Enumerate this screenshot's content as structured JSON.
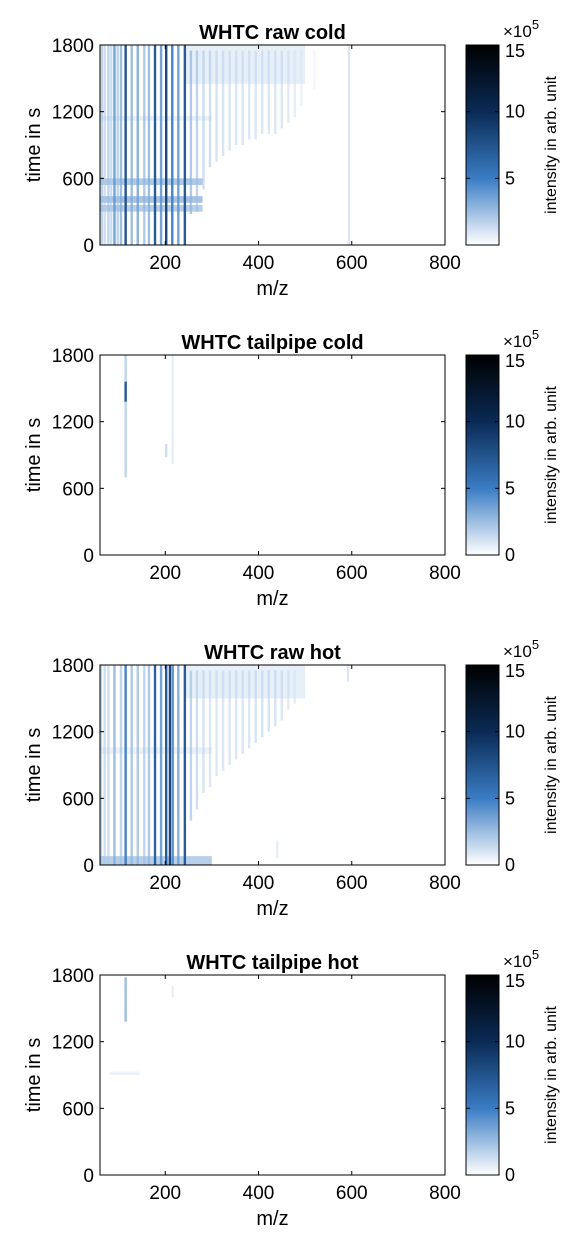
{
  "chart_data": [
    {
      "type": "heatmap",
      "title": "WHTC raw cold",
      "xlabel": "m/z",
      "ylabel": "time in s",
      "xlim": [
        60,
        800
      ],
      "ylim": [
        0,
        1800
      ],
      "xticks": [
        "200",
        "400",
        "600",
        "800"
      ],
      "yticks": [
        "0",
        "600",
        "1200",
        "1800"
      ],
      "colorbar": {
        "label": "intensity in arb. unit",
        "range": [
          0,
          15
        ],
        "multiplier": "×10",
        "exponent": "5",
        "ticks": [
          "5",
          "10",
          "15"
        ],
        "colormap": [
          "#ffffff",
          "#3a7cc4",
          "#0a2a55",
          "#000000"
        ]
      },
      "streaks": [
        {
          "mz": 58,
          "t0": 0,
          "t1": 1800,
          "i": 0.35
        },
        {
          "mz": 64,
          "t0": 0,
          "t1": 1800,
          "i": 0.3
        },
        {
          "mz": 70,
          "t0": 0,
          "t1": 1800,
          "i": 0.25
        },
        {
          "mz": 78,
          "t0": 0,
          "t1": 1800,
          "i": 0.3
        },
        {
          "mz": 84,
          "t0": 0,
          "t1": 1800,
          "i": 0.25
        },
        {
          "mz": 91,
          "t0": 0,
          "t1": 1800,
          "i": 0.5
        },
        {
          "mz": 98,
          "t0": 0,
          "t1": 1800,
          "i": 0.3
        },
        {
          "mz": 105,
          "t0": 0,
          "t1": 1800,
          "i": 0.4
        },
        {
          "mz": 115,
          "t0": 0,
          "t1": 1800,
          "i": 0.9
        },
        {
          "mz": 128,
          "t0": 0,
          "t1": 1800,
          "i": 0.4
        },
        {
          "mz": 141,
          "t0": 0,
          "t1": 1800,
          "i": 0.45
        },
        {
          "mz": 155,
          "t0": 0,
          "t1": 1800,
          "i": 0.35
        },
        {
          "mz": 165,
          "t0": 0,
          "t1": 1800,
          "i": 0.4
        },
        {
          "mz": 178,
          "t0": 0,
          "t1": 1800,
          "i": 0.85
        },
        {
          "mz": 191,
          "t0": 0,
          "t1": 1800,
          "i": 0.5
        },
        {
          "mz": 202,
          "t0": 0,
          "t1": 1800,
          "i": 1.0
        },
        {
          "mz": 215,
          "t0": 0,
          "t1": 1800,
          "i": 0.6
        },
        {
          "mz": 228,
          "t0": 0,
          "t1": 1800,
          "i": 0.5
        },
        {
          "mz": 242,
          "t0": 0,
          "t1": 1800,
          "i": 0.85
        },
        {
          "mz": 255,
          "t0": 280,
          "t1": 1750,
          "i": 0.35
        },
        {
          "mz": 268,
          "t0": 300,
          "t1": 1750,
          "i": 0.3
        },
        {
          "mz": 282,
          "t0": 500,
          "t1": 1750,
          "i": 0.25
        },
        {
          "mz": 296,
          "t0": 700,
          "t1": 1750,
          "i": 0.25
        },
        {
          "mz": 310,
          "t0": 750,
          "t1": 1750,
          "i": 0.22
        },
        {
          "mz": 324,
          "t0": 800,
          "t1": 1750,
          "i": 0.22
        },
        {
          "mz": 338,
          "t0": 850,
          "t1": 1750,
          "i": 0.2
        },
        {
          "mz": 352,
          "t0": 900,
          "t1": 1750,
          "i": 0.2
        },
        {
          "mz": 366,
          "t0": 900,
          "t1": 1750,
          "i": 0.2
        },
        {
          "mz": 380,
          "t0": 950,
          "t1": 1750,
          "i": 0.2
        },
        {
          "mz": 394,
          "t0": 950,
          "t1": 1750,
          "i": 0.2
        },
        {
          "mz": 408,
          "t0": 1000,
          "t1": 1750,
          "i": 0.2
        },
        {
          "mz": 422,
          "t0": 1000,
          "t1": 1750,
          "i": 0.2
        },
        {
          "mz": 436,
          "t0": 1000,
          "t1": 1750,
          "i": 0.2
        },
        {
          "mz": 450,
          "t0": 1050,
          "t1": 1750,
          "i": 0.2
        },
        {
          "mz": 464,
          "t0": 1100,
          "t1": 1750,
          "i": 0.18
        },
        {
          "mz": 478,
          "t0": 1150,
          "t1": 1750,
          "i": 0.15
        },
        {
          "mz": 492,
          "t0": 1250,
          "t1": 1750,
          "i": 0.12
        },
        {
          "mz": 520,
          "t0": 1400,
          "t1": 1750,
          "i": 0.08
        },
        {
          "mz": 594,
          "t0": 0,
          "t1": 1800,
          "i": 0.2
        }
      ],
      "bands": [
        {
          "mz0": 60,
          "mz1": 280,
          "t0": 300,
          "t1": 360,
          "i": 0.45
        },
        {
          "mz0": 60,
          "mz1": 280,
          "t0": 380,
          "t1": 440,
          "i": 0.55
        },
        {
          "mz0": 60,
          "mz1": 280,
          "t0": 540,
          "t1": 600,
          "i": 0.5
        },
        {
          "mz0": 60,
          "mz1": 300,
          "t0": 1120,
          "t1": 1160,
          "i": 0.15
        },
        {
          "mz0": 240,
          "mz1": 500,
          "t0": 1450,
          "t1": 1800,
          "i": 0.15
        }
      ]
    },
    {
      "type": "heatmap",
      "title": "WHTC tailpipe cold",
      "xlabel": "m/z",
      "ylabel": "time in s",
      "xlim": [
        60,
        800
      ],
      "ylim": [
        0,
        1800
      ],
      "xticks": [
        "200",
        "400",
        "600",
        "800"
      ],
      "yticks": [
        "0",
        "600",
        "1200",
        "1800"
      ],
      "colorbar": {
        "label": "intensity in arb. unit",
        "range": [
          0,
          15
        ],
        "multiplier": "×10",
        "exponent": "5",
        "ticks": [
          "0",
          "5",
          "10",
          "15"
        ],
        "colormap": [
          "#ffffff",
          "#3a7cc4",
          "#0a2a55",
          "#000000"
        ]
      },
      "streaks": [
        {
          "mz": 115,
          "t0": 700,
          "t1": 1800,
          "i": 0.3
        },
        {
          "mz": 115,
          "t0": 1380,
          "t1": 1560,
          "i": 0.85
        },
        {
          "mz": 202,
          "t0": 880,
          "t1": 1000,
          "i": 0.25
        },
        {
          "mz": 216,
          "t0": 820,
          "t1": 1800,
          "i": 0.15
        }
      ],
      "bands": []
    },
    {
      "type": "heatmap",
      "title": "WHTC raw hot",
      "xlabel": "m/z",
      "ylabel": "time in s",
      "xlim": [
        60,
        800
      ],
      "ylim": [
        0,
        1800
      ],
      "xticks": [
        "200",
        "400",
        "600",
        "800"
      ],
      "yticks": [
        "0",
        "600",
        "1200",
        "1800"
      ],
      "colorbar": {
        "label": "intensity in arb. unit",
        "range": [
          0,
          15
        ],
        "multiplier": "×10",
        "exponent": "5",
        "ticks": [
          "0",
          "5",
          "10",
          "15"
        ],
        "colormap": [
          "#ffffff",
          "#3a7cc4",
          "#0a2a55",
          "#000000"
        ]
      },
      "streaks": [
        {
          "mz": 62,
          "t0": 0,
          "t1": 1800,
          "i": 0.3
        },
        {
          "mz": 70,
          "t0": 0,
          "t1": 1800,
          "i": 0.25
        },
        {
          "mz": 78,
          "t0": 0,
          "t1": 1800,
          "i": 0.25
        },
        {
          "mz": 91,
          "t0": 0,
          "t1": 1800,
          "i": 0.4
        },
        {
          "mz": 105,
          "t0": 0,
          "t1": 1800,
          "i": 0.3
        },
        {
          "mz": 115,
          "t0": 0,
          "t1": 1800,
          "i": 0.6
        },
        {
          "mz": 128,
          "t0": 0,
          "t1": 1800,
          "i": 0.35
        },
        {
          "mz": 141,
          "t0": 0,
          "t1": 1800,
          "i": 0.35
        },
        {
          "mz": 155,
          "t0": 0,
          "t1": 1800,
          "i": 0.3
        },
        {
          "mz": 165,
          "t0": 0,
          "t1": 1800,
          "i": 0.35
        },
        {
          "mz": 178,
          "t0": 0,
          "t1": 1800,
          "i": 0.8
        },
        {
          "mz": 191,
          "t0": 0,
          "t1": 1800,
          "i": 0.5
        },
        {
          "mz": 202,
          "t0": 0,
          "t1": 1800,
          "i": 0.85
        },
        {
          "mz": 210,
          "t0": 0,
          "t1": 1800,
          "i": 1.0
        },
        {
          "mz": 216,
          "t0": 0,
          "t1": 1800,
          "i": 0.55
        },
        {
          "mz": 228,
          "t0": 0,
          "t1": 1800,
          "i": 0.45
        },
        {
          "mz": 242,
          "t0": 0,
          "t1": 1800,
          "i": 0.85
        },
        {
          "mz": 255,
          "t0": 400,
          "t1": 1750,
          "i": 0.3
        },
        {
          "mz": 268,
          "t0": 500,
          "t1": 1750,
          "i": 0.25
        },
        {
          "mz": 282,
          "t0": 650,
          "t1": 1750,
          "i": 0.22
        },
        {
          "mz": 296,
          "t0": 700,
          "t1": 1750,
          "i": 0.2
        },
        {
          "mz": 310,
          "t0": 800,
          "t1": 1750,
          "i": 0.2
        },
        {
          "mz": 324,
          "t0": 850,
          "t1": 1750,
          "i": 0.2
        },
        {
          "mz": 338,
          "t0": 900,
          "t1": 1750,
          "i": 0.2
        },
        {
          "mz": 352,
          "t0": 950,
          "t1": 1750,
          "i": 0.2
        },
        {
          "mz": 366,
          "t0": 1000,
          "t1": 1750,
          "i": 0.2
        },
        {
          "mz": 380,
          "t0": 1050,
          "t1": 1750,
          "i": 0.2
        },
        {
          "mz": 394,
          "t0": 1100,
          "t1": 1750,
          "i": 0.22
        },
        {
          "mz": 408,
          "t0": 1150,
          "t1": 1750,
          "i": 0.22
        },
        {
          "mz": 422,
          "t0": 1200,
          "t1": 1750,
          "i": 0.22
        },
        {
          "mz": 436,
          "t0": 1250,
          "t1": 1750,
          "i": 0.22
        },
        {
          "mz": 450,
          "t0": 1300,
          "t1": 1750,
          "i": 0.2
        },
        {
          "mz": 464,
          "t0": 1400,
          "t1": 1750,
          "i": 0.18
        },
        {
          "mz": 478,
          "t0": 1450,
          "t1": 1750,
          "i": 0.15
        },
        {
          "mz": 440,
          "t0": 60,
          "t1": 220,
          "i": 0.15
        },
        {
          "mz": 592,
          "t0": 1650,
          "t1": 1800,
          "i": 0.2
        }
      ],
      "bands": [
        {
          "mz0": 60,
          "mz1": 300,
          "t0": 0,
          "t1": 80,
          "i": 0.45
        },
        {
          "mz0": 240,
          "mz1": 500,
          "t0": 1500,
          "t1": 1800,
          "i": 0.15
        },
        {
          "mz0": 60,
          "mz1": 300,
          "t0": 1000,
          "t1": 1060,
          "i": 0.12
        }
      ]
    },
    {
      "type": "heatmap",
      "title": "WHTC tailpipe hot",
      "xlabel": "m/z",
      "ylabel": "time in s",
      "xlim": [
        60,
        800
      ],
      "ylim": [
        0,
        1800
      ],
      "xticks": [
        "200",
        "400",
        "600",
        "800"
      ],
      "yticks": [
        "0",
        "600",
        "1200",
        "1800"
      ],
      "colorbar": {
        "label": "intensity in arb. unit",
        "range": [
          0,
          15
        ],
        "multiplier": "×10",
        "exponent": "5",
        "ticks": [
          "0",
          "5",
          "10",
          "15"
        ],
        "colormap": [
          "#ffffff",
          "#3a7cc4",
          "#0a2a55",
          "#000000"
        ]
      },
      "streaks": [
        {
          "mz": 115,
          "t0": 1380,
          "t1": 1780,
          "i": 0.4
        },
        {
          "mz": 216,
          "t0": 1600,
          "t1": 1700,
          "i": 0.15
        }
      ],
      "bands": [
        {
          "mz0": 80,
          "mz1": 145,
          "t0": 900,
          "t1": 930,
          "i": 0.12
        }
      ]
    }
  ]
}
